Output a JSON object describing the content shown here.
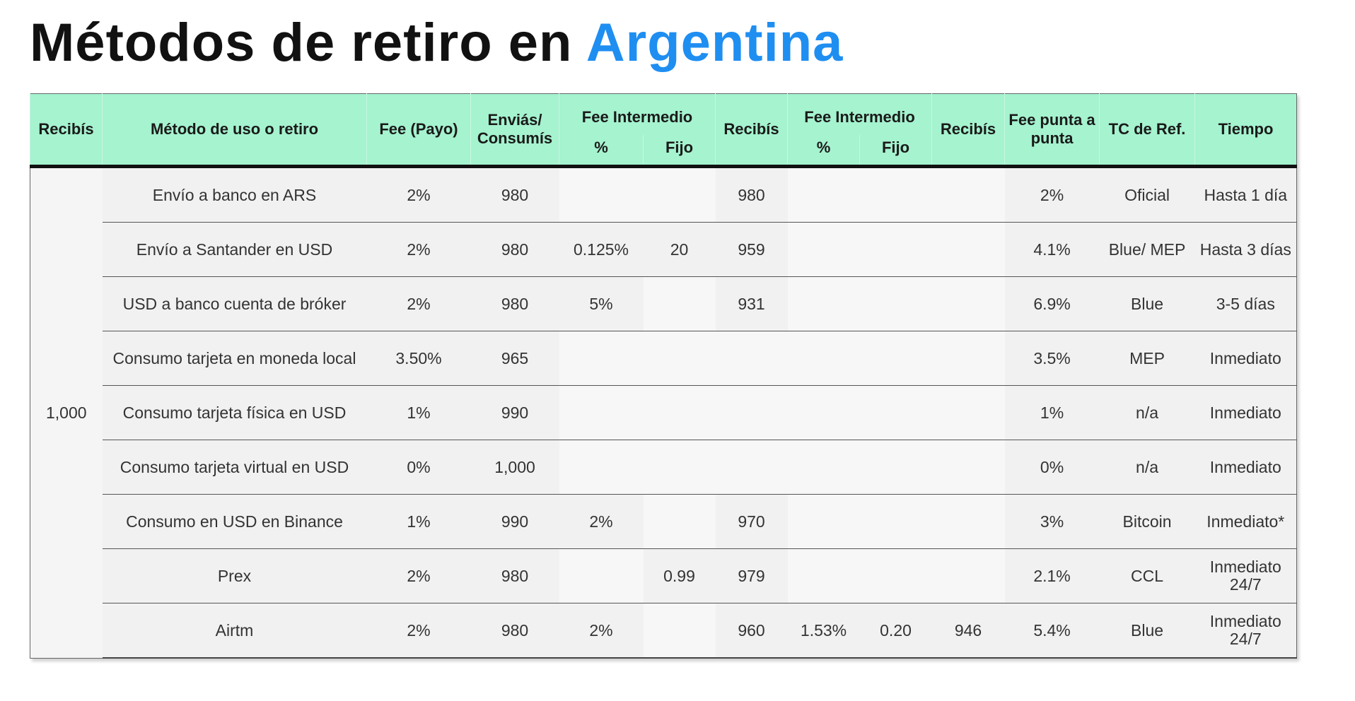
{
  "title": {
    "main": "Métodos de retiro en",
    "accent": "Argentina"
  },
  "columns": {
    "recibis": "Recibís",
    "metodo": "Método de uso o retiro",
    "fee_payo": "Fee (Payo)",
    "envias": "Enviás/ Consumís",
    "fee_intermedio_1": "Fee Intermedio",
    "pct_1": "%",
    "fijo_1": "Fijo",
    "recibis_2": "Recibís",
    "fee_intermedio_2": "Fee Intermedio",
    "pct_2": "%",
    "fijo_2": "Fijo",
    "recibis_3": "Recibís",
    "fee_punta": "Fee punta a punta",
    "tc_ref": "TC de Ref.",
    "tiempo": "Tiempo"
  },
  "recibis_value": "1,000",
  "rows": [
    {
      "metodo": "Envío a banco en ARS",
      "fee": "2%",
      "envias": "980",
      "pct1": "",
      "fijo1": "",
      "recibis2": "980",
      "pct2": "",
      "fijo2": "",
      "recibis3": "",
      "punta": "2%",
      "tc": "Oficial",
      "tiempo": "Hasta 1 día"
    },
    {
      "metodo": "Envío a Santander en USD",
      "fee": "2%",
      "envias": "980",
      "pct1": "0.125%",
      "fijo1": "20",
      "recibis2": "959",
      "pct2": "",
      "fijo2": "",
      "recibis3": "",
      "punta": "4.1%",
      "tc": "Blue/ MEP",
      "tiempo": "Hasta 3 días"
    },
    {
      "metodo": "USD a banco cuenta de bróker",
      "fee": "2%",
      "envias": "980",
      "pct1": "5%",
      "fijo1": "",
      "recibis2": "931",
      "pct2": "",
      "fijo2": "",
      "recibis3": "",
      "punta": "6.9%",
      "tc": "Blue",
      "tiempo": "3-5 días"
    },
    {
      "metodo": "Consumo tarjeta en moneda local",
      "fee": "3.50%",
      "envias": "965",
      "pct1": "",
      "fijo1": "",
      "recibis2": "",
      "pct2": "",
      "fijo2": "",
      "recibis3": "",
      "punta": "3.5%",
      "tc": "MEP",
      "tiempo": "Inmediato"
    },
    {
      "metodo": "Consumo tarjeta física en USD",
      "fee": "1%",
      "envias": "990",
      "pct1": "",
      "fijo1": "",
      "recibis2": "",
      "pct2": "",
      "fijo2": "",
      "recibis3": "",
      "punta": "1%",
      "tc": "n/a",
      "tiempo": "Inmediato"
    },
    {
      "metodo": "Consumo tarjeta virtual en USD",
      "fee": "0%",
      "envias": "1,000",
      "pct1": "",
      "fijo1": "",
      "recibis2": "",
      "pct2": "",
      "fijo2": "",
      "recibis3": "",
      "punta": "0%",
      "tc": "n/a",
      "tiempo": "Inmediato"
    },
    {
      "metodo": "Consumo en USD en Binance",
      "fee": "1%",
      "envias": "990",
      "pct1": "2%",
      "fijo1": "",
      "recibis2": "970",
      "pct2": "",
      "fijo2": "",
      "recibis3": "",
      "punta": "3%",
      "tc": "Bitcoin",
      "tiempo": "Inmediato*"
    },
    {
      "metodo": "Prex",
      "fee": "2%",
      "envias": "980",
      "pct1": "",
      "fijo1": "0.99",
      "recibis2": "979",
      "pct2": "",
      "fijo2": "",
      "recibis3": "",
      "punta": "2.1%",
      "tc": "CCL",
      "tiempo": "Inmediato 24/7"
    },
    {
      "metodo": "Airtm",
      "fee": "2%",
      "envias": "980",
      "pct1": "2%",
      "fijo1": "",
      "recibis2": "960",
      "pct2": "1.53%",
      "fijo2": "0.20",
      "recibis3": "946",
      "punta": "5.4%",
      "tc": "Blue",
      "tiempo": "Inmediato 24/7"
    }
  ]
}
